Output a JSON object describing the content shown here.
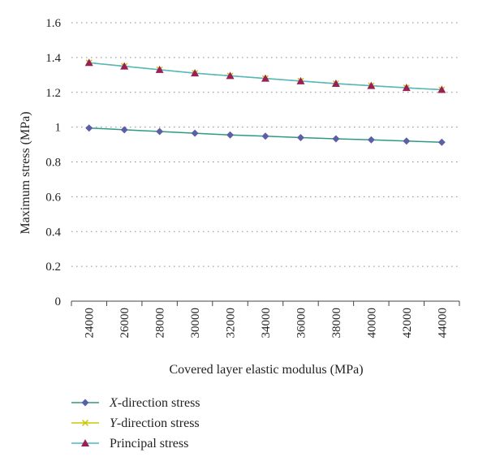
{
  "chart_data": {
    "type": "line",
    "title": "",
    "xlabel": "Covered layer elastic modulus (MPa)",
    "ylabel": "Maximum stress (MPa)",
    "categories": [
      "24000",
      "26000",
      "28000",
      "30000",
      "32000",
      "34000",
      "36000",
      "38000",
      "40000",
      "42000",
      "44000"
    ],
    "ylim": [
      0,
      1.6
    ],
    "yticks": [
      "0",
      "0.2",
      "0.4",
      "0.6",
      "0.8",
      "1",
      "1.2",
      "1.4",
      "1.6"
    ],
    "grid": "horizontal-dotted",
    "legend_position": "bottom",
    "series": [
      {
        "name_prefix": "X",
        "name_suffix": "-direction stress",
        "color": "#2e9a83",
        "marker_color": "#5d5fa6",
        "marker": "diamond",
        "values": [
          0.995,
          0.985,
          0.975,
          0.965,
          0.955,
          0.948,
          0.94,
          0.933,
          0.927,
          0.92,
          0.913
        ]
      },
      {
        "name_prefix": "Y",
        "name_suffix": "-direction stress",
        "color": "#c8c800",
        "marker_color": "#c8c800",
        "marker": "x",
        "values": [
          1.37,
          1.35,
          1.33,
          1.31,
          1.295,
          1.28,
          1.265,
          1.25,
          1.238,
          1.226,
          1.215
        ]
      },
      {
        "name": "Principal stress",
        "color": "#4fb8c8",
        "marker_color": "#9b1f54",
        "marker": "triangle",
        "values": [
          1.37,
          1.35,
          1.33,
          1.31,
          1.295,
          1.28,
          1.265,
          1.25,
          1.238,
          1.226,
          1.215
        ]
      }
    ]
  }
}
